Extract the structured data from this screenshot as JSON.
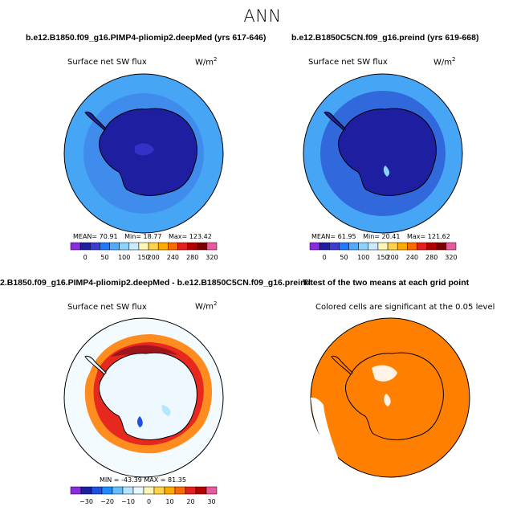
{
  "figure": {
    "title": "ANN"
  },
  "panels": [
    {
      "title": "b.e12.B1850.f09_g16.PIMP4-pliomip2.deepMed (yrs 617-646)",
      "variable": "Surface net SW flux",
      "units_base": "W/m",
      "units_exp": "2",
      "stats": {
        "mean": "MEAN=  70.91",
        "min": "Min=  18.77",
        "max": "Max=  123.42"
      },
      "colorbar": {
        "labels": [
          "0",
          "50",
          "100",
          "150",
          "200",
          "240",
          "280",
          "320"
        ],
        "colors": [
          "#8a2be2",
          "#1e1ea0",
          "#3c3cd2",
          "#1e78ff",
          "#50aaff",
          "#8cd2ff",
          "#c8ebff",
          "#fff5b4",
          "#ffd24a",
          "#ffaa00",
          "#ff6a00",
          "#e61e1e",
          "#b40000",
          "#7a0000",
          "#e65aa0"
        ]
      }
    },
    {
      "title": "b.e12.B1850C5CN.f09_g16.preind (yrs 619-668)",
      "variable": "Surface net SW flux",
      "units_base": "W/m",
      "units_exp": "2",
      "stats": {
        "mean": "MEAN=  61.95",
        "min": "Min=  20.41",
        "max": "Max=  121.62"
      },
      "colorbar": {
        "labels": [
          "0",
          "50",
          "100",
          "150",
          "200",
          "240",
          "280",
          "320"
        ],
        "colors": [
          "#8a2be2",
          "#1e1ea0",
          "#3c3cd2",
          "#1e78ff",
          "#50aaff",
          "#8cd2ff",
          "#c8ebff",
          "#fff5b4",
          "#ffd24a",
          "#ffaa00",
          "#ff6a00",
          "#e61e1e",
          "#b40000",
          "#7a0000",
          "#e65aa0"
        ]
      }
    },
    {
      "title": "2.B1850.f09_g16.PIMP4-pliomip2.deepMed - b.e12.B1850C5CN.f09_g16.preind",
      "variable": "Surface net SW flux",
      "units_base": "W/m",
      "units_exp": "2",
      "stats": {
        "minmax": "MIN = -43.39  MAX =  81.35"
      },
      "colorbar": {
        "labels": [
          "−30",
          "−20",
          "−10",
          "0",
          "10",
          "20",
          "30"
        ],
        "colors": [
          "#8a2be2",
          "#1e1ea0",
          "#1e50e6",
          "#1e8cff",
          "#64beff",
          "#b4e6ff",
          "#e6f8ff",
          "#fff5b4",
          "#ffd24a",
          "#ffaa00",
          "#ff6a00",
          "#e61e1e",
          "#b40000",
          "#e65aa0"
        ]
      }
    },
    {
      "title": "T-test of the two means at each grid point",
      "note": "Colored cells are significant at the 0.05 level"
    }
  ],
  "colors": {
    "ocean_light": "#3ca0f0",
    "ocean_deep": "#1e1ea0",
    "land_ice": "#1e1ea0",
    "signif": "#ff7f00"
  }
}
